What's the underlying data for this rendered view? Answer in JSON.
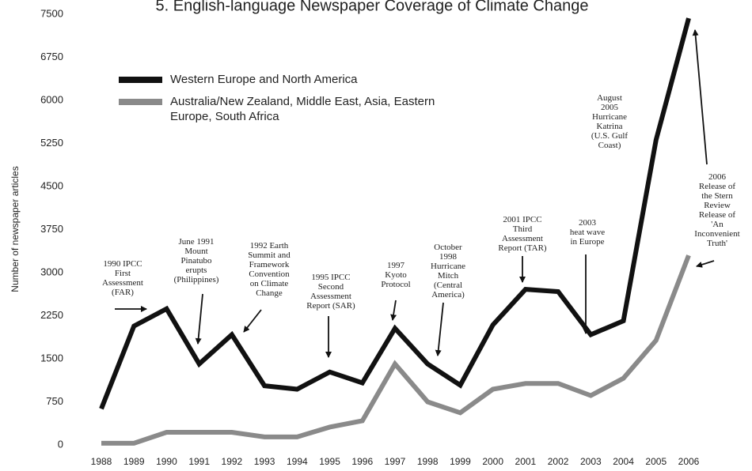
{
  "chart_data": {
    "type": "line",
    "title": "5. English-language Newspaper Coverage of Climate Change",
    "y_label": "Number of newspaper articles",
    "x": [
      1988,
      1989,
      1990,
      1991,
      1992,
      1993,
      1994,
      1995,
      1996,
      1997,
      1998,
      1999,
      2000,
      2001,
      2002,
      2003,
      2004,
      2005,
      2006
    ],
    "xlim": [
      1988,
      2006
    ],
    "xticks": [
      1988,
      1989,
      1990,
      1991,
      1992,
      1993,
      1994,
      1995,
      1996,
      1997,
      1998,
      1999,
      2000,
      2001,
      2002,
      2003,
      2004,
      2005,
      2006
    ],
    "ylim": [
      0,
      7500
    ],
    "yticks": [
      0,
      750,
      1500,
      2250,
      3000,
      3750,
      4500,
      5250,
      6000,
      6750,
      7500
    ],
    "grid": false,
    "legend": "upper left",
    "series": [
      {
        "name": "Western Europe and North America",
        "color": "#111111",
        "values": [
          630,
          2070,
          2370,
          1410,
          1920,
          1030,
          970,
          1270,
          1080,
          2030,
          1410,
          1040,
          2090,
          2710,
          2670,
          1920,
          2160,
          5310,
          7430
        ]
      },
      {
        "name": "Australia/New Zealand, Middle East, Asia, Eastern Europe, South Africa",
        "color": "#8a8a8a",
        "values": [
          30,
          30,
          220,
          220,
          220,
          140,
          140,
          310,
          420,
          1410,
          750,
          560,
          970,
          1070,
          1070,
          860,
          1160,
          1820,
          3300
        ]
      }
    ],
    "annotations": [
      "1990 IPCC\nFirst\nAssessment\n(FAR)",
      "June 1991\nMount\nPinatubo\nerupts\n(Philippines)",
      "1992 Earth\nSummit and\nFramework\nConvention\non Climate\nChange",
      "1995 IPCC\nSecond\nAssessment\nReport (SAR)",
      "1997\nKyoto\nProtocol",
      "October\n1998\nHurricane\nMitch\n(Central\nAmerica)",
      "2001 IPCC\nThird\nAssessment\nReport (TAR)",
      "2003\nheat wave\nin Europe",
      "August\n2005\nHurricane\nKatrina\n(U.S. Gulf\nCoast)",
      "2006\nRelease of\nthe Stern\nReview\nRelease of\n'An Inconvenient\nTruth'"
    ]
  }
}
